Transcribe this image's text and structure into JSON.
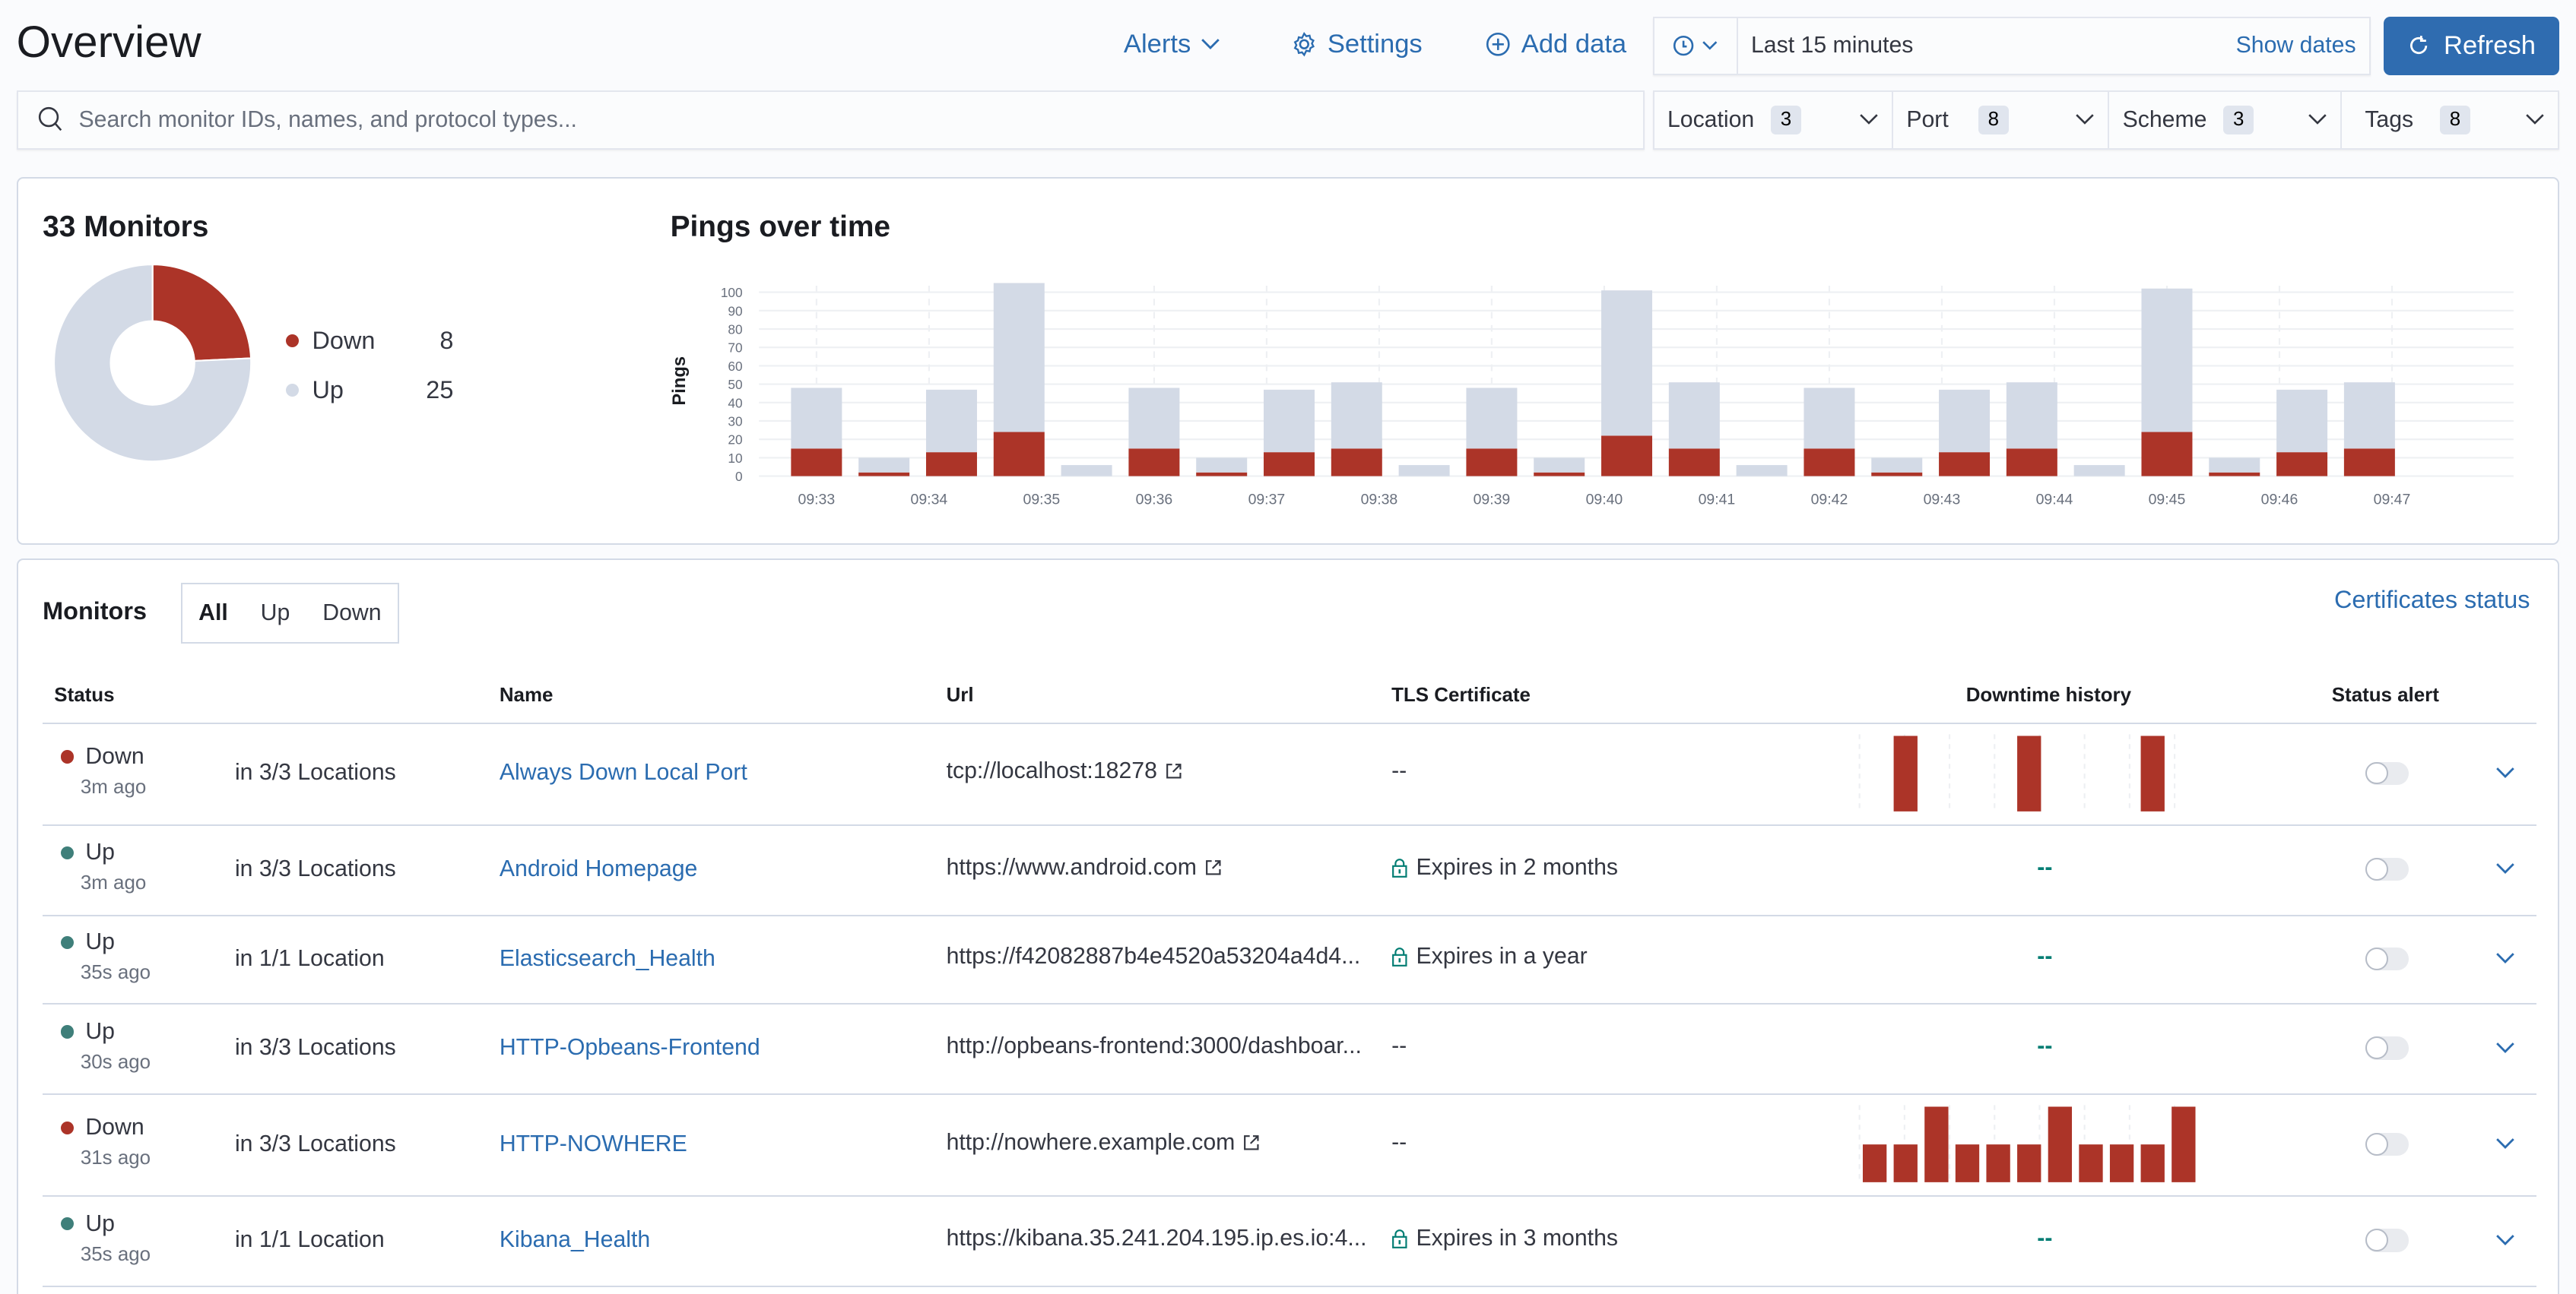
{
  "header": {
    "title": "Overview",
    "alerts_label": "Alerts",
    "settings_label": "Settings",
    "add_data_label": "Add data",
    "date_range": "Last 15 minutes",
    "show_dates_label": "Show dates",
    "refresh_label": "Refresh"
  },
  "search": {
    "placeholder": "Search monitor IDs, names, and protocol types..."
  },
  "filters": [
    {
      "label": "Location",
      "count": "3"
    },
    {
      "label": "Port",
      "count": "8"
    },
    {
      "label": "Scheme",
      "count": "3"
    },
    {
      "label": "Tags",
      "count": "8"
    }
  ],
  "snapshot": {
    "title": "33 Monitors",
    "legend": [
      {
        "label": "Down",
        "value": "8",
        "color": "#ac3428"
      },
      {
        "label": "Up",
        "value": "25",
        "color": "#d3dae6"
      }
    ]
  },
  "chart_data": {
    "type": "bar",
    "stacked": true,
    "title": "Pings over time",
    "ylabel": "Pings",
    "xlabel": "",
    "ylim": [
      0,
      105
    ],
    "yticks": [
      0,
      10,
      20,
      30,
      40,
      50,
      60,
      70,
      80,
      90,
      100
    ],
    "xticks": [
      "09:33",
      "09:34",
      "09:35",
      "09:36",
      "09:37",
      "09:38",
      "09:39",
      "09:40",
      "09:41",
      "09:42",
      "09:43",
      "09:44",
      "09:45",
      "09:46",
      "09:47"
    ],
    "grid": true,
    "x": [
      "09:33:00",
      "09:33:36",
      "09:34:12",
      "09:34:48",
      "09:35:24",
      "09:36:00",
      "09:36:36",
      "09:37:12",
      "09:37:48",
      "09:38:24",
      "09:39:00",
      "09:39:36",
      "09:40:12",
      "09:40:48",
      "09:41:24",
      "09:42:00",
      "09:42:36",
      "09:43:12",
      "09:43:48",
      "09:44:24",
      "09:45:00",
      "09:45:36",
      "09:46:12",
      "09:46:48"
    ],
    "series": [
      {
        "name": "Down",
        "color": "#ac3428",
        "values": [
          15,
          2,
          13,
          24,
          0,
          15,
          2,
          13,
          15,
          0,
          15,
          2,
          22,
          15,
          0,
          15,
          2,
          13,
          15,
          0,
          24,
          2,
          13,
          15
        ]
      },
      {
        "name": "Up",
        "color": "#d3dae6",
        "values": [
          33,
          8,
          34,
          81,
          6,
          33,
          8,
          34,
          36,
          6,
          33,
          8,
          79,
          36,
          6,
          33,
          8,
          34,
          36,
          6,
          78,
          8,
          34,
          36
        ]
      }
    ]
  },
  "monitors": {
    "title": "Monitors",
    "filter_tabs": [
      {
        "label": "All",
        "selected": true
      },
      {
        "label": "Up"
      },
      {
        "label": "Down"
      }
    ],
    "certificates_link": "Certificates status",
    "columns": {
      "status": "Status",
      "name": "Name",
      "url": "Url",
      "tls": "TLS Certificate",
      "history": "Downtime history",
      "alert": "Status alert"
    },
    "rows": [
      {
        "status": "Down",
        "ago": "3m ago",
        "locations": "in 3/3 Locations",
        "name": "Always Down Local Port",
        "url": "tcp://localhost:18278",
        "external": true,
        "tls": "--",
        "tls_lock": false,
        "history": [
          0,
          2,
          0,
          0,
          0,
          2,
          0,
          0,
          0,
          2,
          0
        ],
        "history_empty": "",
        "alert_enabled": false
      },
      {
        "status": "Up",
        "ago": "3m ago",
        "locations": "in 3/3 Locations",
        "name": "Android Homepage",
        "url": "https://www.android.com",
        "external": true,
        "tls": "Expires in 2 months",
        "tls_lock": true,
        "history": [],
        "history_empty": "--",
        "alert_enabled": false
      },
      {
        "status": "Up",
        "ago": "35s ago",
        "locations": "in 1/1 Location",
        "name": "Elasticsearch_Health",
        "url": "https://f42082887b4e4520a53204a4d4...",
        "external": false,
        "tls": "Expires in a year",
        "tls_lock": true,
        "history": [],
        "history_empty": "--",
        "alert_enabled": false
      },
      {
        "status": "Up",
        "ago": "30s ago",
        "locations": "in 3/3 Locations",
        "name": "HTTP-Opbeans-Frontend",
        "url": "http://opbeans-frontend:3000/dashboar...",
        "external": false,
        "tls": "--",
        "tls_lock": false,
        "history": [],
        "history_empty": "--",
        "alert_enabled": false
      },
      {
        "status": "Down",
        "ago": "31s ago",
        "locations": "in 3/3 Locations",
        "name": "HTTP-NOWHERE",
        "url": "http://nowhere.example.com",
        "external": true,
        "tls": "--",
        "tls_lock": false,
        "history": [
          1,
          1,
          2,
          1,
          1,
          1,
          2,
          1,
          1,
          1,
          2
        ],
        "history_empty": "",
        "alert_enabled": false
      },
      {
        "status": "Up",
        "ago": "35s ago",
        "locations": "in 1/1 Location",
        "name": "Kibana_Health",
        "url": "https://kibana.35.241.204.195.ip.es.io:4...",
        "external": false,
        "tls": "Expires in 3 months",
        "tls_lock": true,
        "history": [],
        "history_empty": "--",
        "alert_enabled": false
      }
    ]
  },
  "colors": {
    "down": "#ac3428",
    "up_dot": "#3f7f7a",
    "up_bar": "#d3dae6",
    "accent": "#2f6cb0",
    "link": "#2b6cb0"
  }
}
